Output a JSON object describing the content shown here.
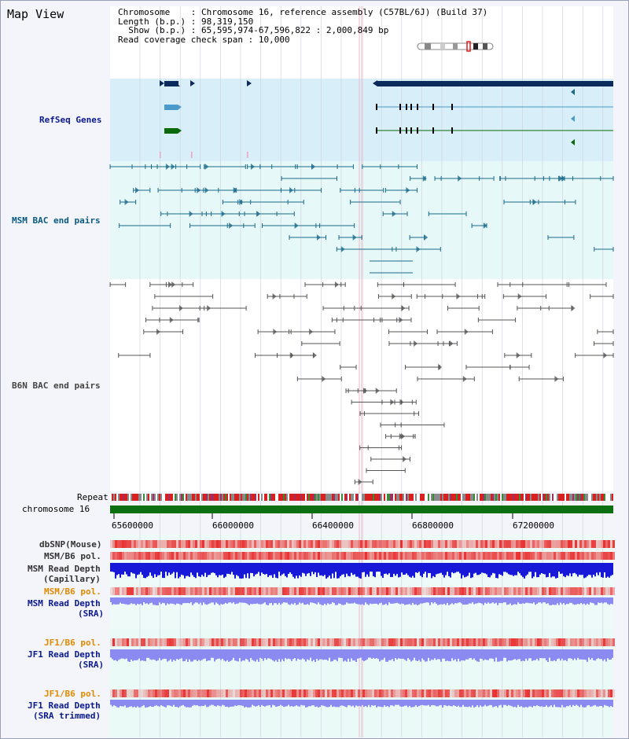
{
  "view": {
    "title": "Map View",
    "info": {
      "chromosome_key": "Chromosome",
      "chromosome_val": "Chromosome 16, reference assembly (C57BL/6J) (Build 37)",
      "length_key": "Length (b.p.)",
      "length_val": "98,319,150",
      "show_key": "Show (b.p.)",
      "show_val": "65,595,974-67,596,822 : 2,000,849 bp",
      "coverage_key": "Read coverage check span",
      "coverage_val": "10,000"
    }
  },
  "tracks": {
    "refseq": "RefSeq Genes",
    "msm_bac": "MSM BAC end pairs",
    "b6n_bac": "B6N BAC end pairs",
    "repeat": "Repeat",
    "chromosome": "chromosome 16",
    "dbsnp": "dbSNP(Mouse)",
    "msm_b6_pol_cap": "MSM/B6 pol.",
    "msm_depth_cap_1": "MSM Read Depth",
    "msm_depth_cap_2": "(Capillary)",
    "msm_b6_pol_sra": "MSM/B6 pol.",
    "msm_depth_sra_1": "MSM Read Depth",
    "msm_depth_sra_2": "(SRA)",
    "jf1_b6_pol": "JF1/B6 pol.",
    "jf1_depth_1": "JF1 Read Depth",
    "jf1_depth_2": "(SRA)",
    "jf1_b6_pol_trim": "JF1/B6 pol.",
    "jf1_depth_trim_1": "JF1 Read Depth",
    "jf1_depth_trim_2": "(SRA trimmed)"
  },
  "axis": {
    "ticks": [
      "65600000",
      "66000000",
      "66400000",
      "66800000",
      "67200000"
    ]
  },
  "colors": {
    "refseq_bg": "#d8eef8",
    "bac_bg": "#e6f8f8",
    "gene_dark": "#0b2b5c",
    "gene_blue": "#4a9acb",
    "gene_green": "#0a6a0a",
    "msm_line": "#1a6a8a",
    "b6n_line": "#555555",
    "chrom_green": "#0a7010",
    "depth_blue": "#1818d8",
    "depth_light": "#8a8af0",
    "pol_red": "#e83030"
  }
}
